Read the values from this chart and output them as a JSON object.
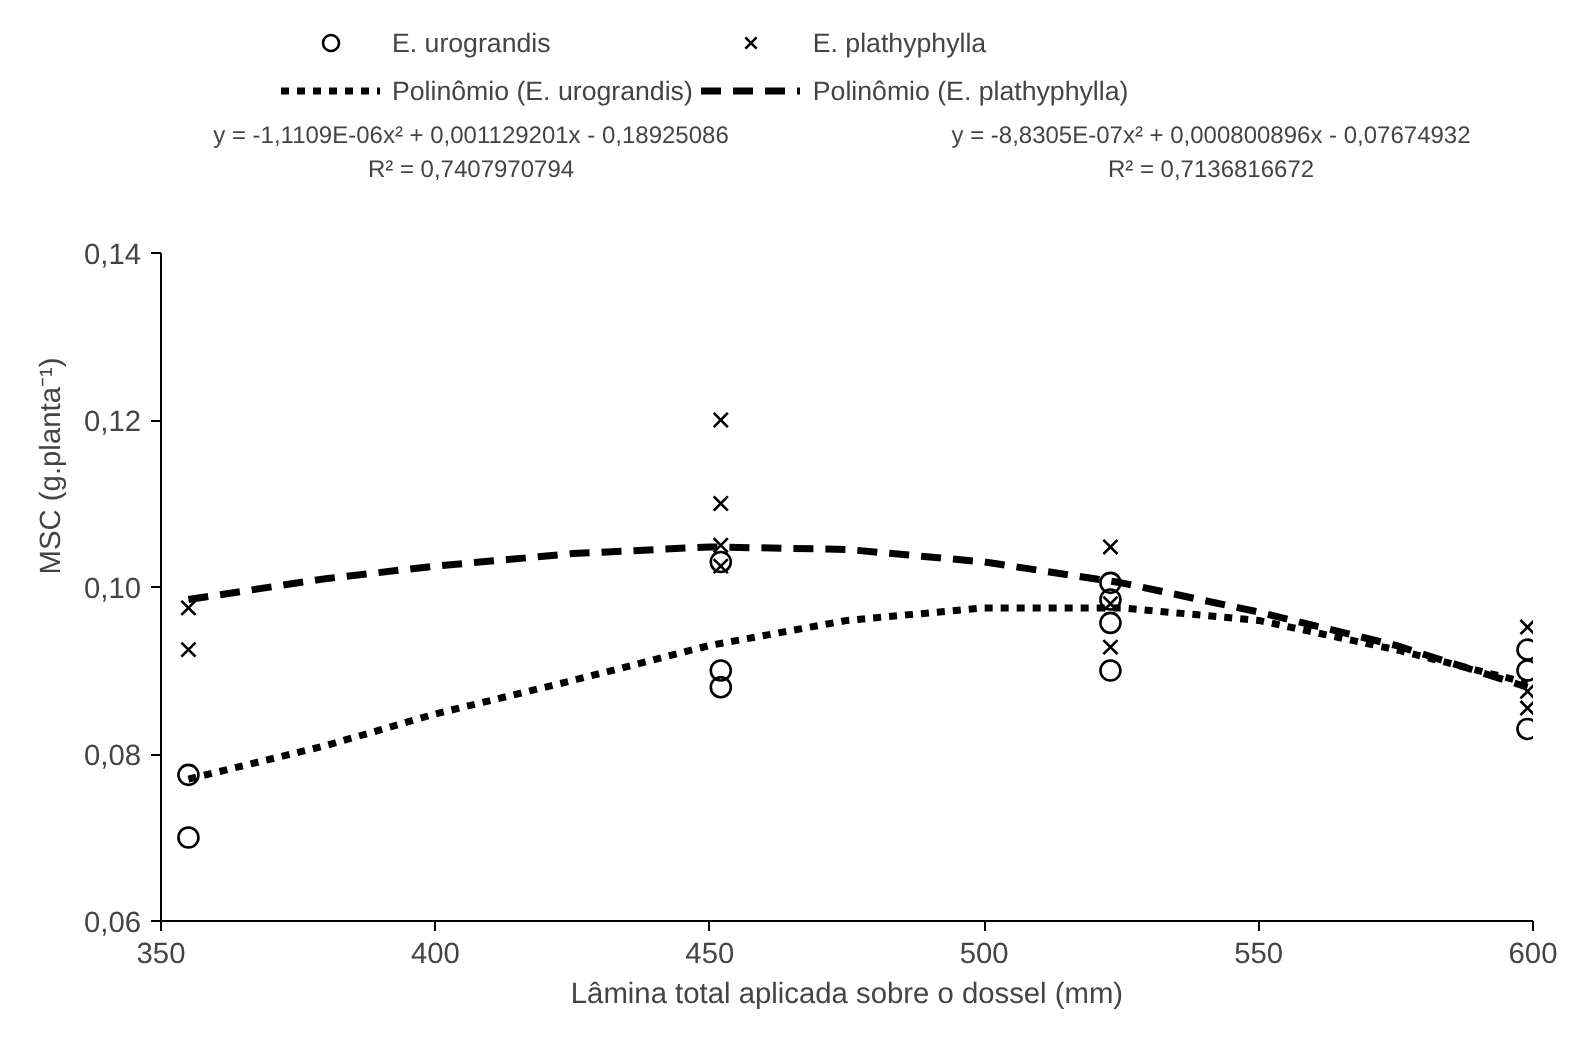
{
  "chart_data": {
    "type": "scatter",
    "xlabel": "Lâmina total aplicada sobre o dossel (mm)",
    "ylabel": "MSC (g.planta⁻¹)",
    "xlim": [
      350,
      600
    ],
    "xticks": [
      350,
      400,
      450,
      500,
      550,
      600
    ],
    "ylim": [
      0.06,
      0.14
    ],
    "yticks": [
      {
        "value": 0.06,
        "label": "0,06"
      },
      {
        "value": 0.08,
        "label": "0,08"
      },
      {
        "value": 0.1,
        "label": "0,10"
      },
      {
        "value": 0.12,
        "label": "0,12"
      },
      {
        "value": 0.14,
        "label": "0,14"
      }
    ],
    "grid": false,
    "legend": "top",
    "series": [
      {
        "name": "E. urograndis",
        "marker": "circle",
        "color": "#000000",
        "x": [
          355,
          355,
          452,
          452,
          452,
          523,
          523,
          523,
          523,
          599,
          599,
          599
        ],
        "values": [
          0.0775,
          0.07,
          0.103,
          0.09,
          0.088,
          0.1005,
          0.0985,
          0.0957,
          0.09,
          0.0925,
          0.09,
          0.083
        ]
      },
      {
        "name": "E. plathyphylla",
        "marker": "cross",
        "color": "#000000",
        "x": [
          355,
          355,
          452,
          452,
          452,
          452,
          523,
          523,
          523,
          599,
          599,
          599
        ],
        "values": [
          0.0975,
          0.0925,
          0.12,
          0.11,
          0.105,
          0.1025,
          0.1048,
          0.098,
          0.0928,
          0.0952,
          0.0875,
          0.0855
        ]
      },
      {
        "name": "Polinômio (E. urograndis)",
        "type": "line",
        "line_style": "dotted",
        "color": "#000000",
        "x": [
          355,
          380,
          400,
          425,
          450,
          475,
          500,
          525,
          550,
          575,
          599
        ],
        "values": [
          0.077,
          0.081,
          0.0848,
          0.0888,
          0.093,
          0.096,
          0.0975,
          0.0975,
          0.096,
          0.0925,
          0.0885
        ]
      },
      {
        "name": "Polinômio (E. plathyphylla)",
        "type": "line",
        "line_style": "dashed",
        "color": "#000000",
        "x": [
          355,
          380,
          400,
          425,
          450,
          475,
          500,
          525,
          550,
          575,
          599
        ],
        "values": [
          0.0985,
          0.101,
          0.1025,
          0.104,
          0.1048,
          0.1045,
          0.103,
          0.1005,
          0.097,
          0.093,
          0.088
        ]
      }
    ],
    "annotations": [
      "y = -1,1109E-06x² + 0,001129201x - 0,18925086\nR² = 0,7407970794",
      "y = -8,8305E-07x² + 0,000800896x - 0,07674932\nR² = 0,7136816672"
    ]
  }
}
